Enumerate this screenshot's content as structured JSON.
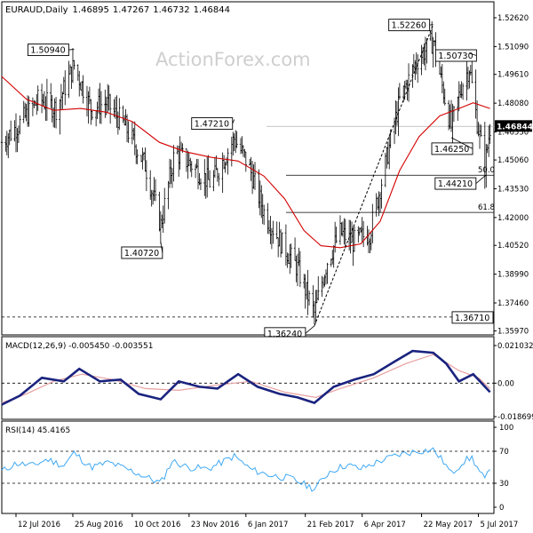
{
  "header": {
    "symbol": "EURAUD",
    "timeframe": "Daily",
    "open": "1.46895",
    "high": "1.47267",
    "low": "1.46732",
    "close": "1.46844"
  },
  "watermark": "ActionForex.com",
  "colors": {
    "bar": "#000000",
    "ma": "#d40000",
    "macd": "#1a237e",
    "signal": "#e8a0a0",
    "rsi": "#3fa9f5",
    "grid": "#bdbdbd"
  },
  "chart_data": [
    {
      "type": "ohlc",
      "id": "price",
      "ylim": [
        1.3576,
        1.5262
      ],
      "ytick_labels": [
        "1.52620",
        "1.51090",
        "1.49610",
        "1.48080",
        "1.46550",
        "1.45060",
        "1.43530",
        "1.42000",
        "1.40520",
        "1.38990",
        "1.37460",
        "1.35970"
      ],
      "ytick_values": [
        1.5262,
        1.5109,
        1.4961,
        1.4808,
        1.4655,
        1.4506,
        1.4353,
        1.42,
        1.4052,
        1.3899,
        1.3746,
        1.3597
      ],
      "current_price_label": "1.46844",
      "current_price": 1.46844,
      "key_points": [
        {
          "label": "1.50940",
          "value": 1.5094,
          "date": "2016-08-26"
        },
        {
          "label": "1.40720",
          "value": 1.4072,
          "date": "2016-11-01"
        },
        {
          "label": "1.47210",
          "value": 1.4721,
          "date": "2016-12-28"
        },
        {
          "label": "1.36240",
          "value": 1.3624,
          "date": "2017-02-28"
        },
        {
          "label": "1.52260",
          "value": 1.5226,
          "date": "2017-05-31"
        },
        {
          "label": "1.50730",
          "value": 1.5073,
          "date": "2017-06-28"
        },
        {
          "label": "1.46250",
          "value": 1.4625,
          "date": "2017-06-14"
        },
        {
          "label": "1.44210",
          "value": 1.4421,
          "date": "2017-07-10"
        },
        {
          "label": "1.36710",
          "value": 1.3671,
          "date": "2016-07-12"
        }
      ],
      "fib_levels": [
        {
          "label": "50.0",
          "value": 1.4425
        },
        {
          "label": "61.8",
          "value": 1.4227
        }
      ],
      "dashed_level": 1.3671,
      "trendline": {
        "from": {
          "date": "2017-02-28",
          "value": 1.3624
        },
        "to": {
          "date": "2017-05-31",
          "value": 1.5226
        }
      },
      "ma_name": "",
      "ma_points": [
        [
          "2016-07-01",
          1.495
        ],
        [
          "2016-07-20",
          1.483
        ],
        [
          "2016-08-10",
          1.477
        ],
        [
          "2016-08-31",
          1.478
        ],
        [
          "2016-09-20",
          1.476
        ],
        [
          "2016-10-10",
          1.471
        ],
        [
          "2016-10-31",
          1.46
        ],
        [
          "2016-11-20",
          1.455
        ],
        [
          "2016-12-10",
          1.452
        ],
        [
          "2016-12-31",
          1.45
        ],
        [
          "2017-01-20",
          1.442
        ],
        [
          "2017-02-05",
          1.43
        ],
        [
          "2017-02-20",
          1.413
        ],
        [
          "2017-03-05",
          1.405
        ],
        [
          "2017-03-20",
          1.404
        ],
        [
          "2017-04-05",
          1.406
        ],
        [
          "2017-04-20",
          1.418
        ],
        [
          "2017-05-05",
          1.445
        ],
        [
          "2017-05-20",
          1.463
        ],
        [
          "2017-06-05",
          1.474
        ],
        [
          "2017-06-20",
          1.478
        ],
        [
          "2017-07-01",
          1.481
        ],
        [
          "2017-07-14",
          1.478
        ]
      ],
      "price_path": [
        [
          "2016-07-01",
          1.46
        ],
        [
          "2016-07-15",
          1.47
        ],
        [
          "2016-07-30",
          1.483
        ],
        [
          "2016-08-12",
          1.478
        ],
        [
          "2016-08-26",
          1.501
        ],
        [
          "2016-09-08",
          1.478
        ],
        [
          "2016-09-20",
          1.481
        ],
        [
          "2016-10-05",
          1.468
        ],
        [
          "2016-10-20",
          1.448
        ],
        [
          "2016-11-01",
          1.416
        ],
        [
          "2016-11-12",
          1.455
        ],
        [
          "2016-11-25",
          1.448
        ],
        [
          "2016-12-10",
          1.438
        ],
        [
          "2016-12-28",
          1.462
        ],
        [
          "2017-01-08",
          1.448
        ],
        [
          "2017-01-20",
          1.423
        ],
        [
          "2017-02-01",
          1.408
        ],
        [
          "2017-02-15",
          1.393
        ],
        [
          "2017-02-28",
          1.369
        ],
        [
          "2017-03-10",
          1.397
        ],
        [
          "2017-03-20",
          1.412
        ],
        [
          "2017-03-30",
          1.407
        ],
        [
          "2017-04-12",
          1.412
        ],
        [
          "2017-04-22",
          1.442
        ],
        [
          "2017-05-05",
          1.482
        ],
        [
          "2017-05-18",
          1.503
        ],
        [
          "2017-05-31",
          1.514
        ],
        [
          "2017-06-06",
          1.493
        ],
        [
          "2017-06-14",
          1.468
        ],
        [
          "2017-06-22",
          1.49
        ],
        [
          "2017-06-28",
          1.5
        ],
        [
          "2017-07-04",
          1.471
        ],
        [
          "2017-07-10",
          1.447
        ],
        [
          "2017-07-14",
          1.468
        ]
      ]
    },
    {
      "type": "line",
      "id": "macd",
      "title": "MACD(12,26,9) -0.005450 -0.003551",
      "ylim": [
        -0.0187,
        0.0215
      ],
      "ytick_labels": [
        "0.021032",
        "0.00",
        "-0.018699"
      ],
      "ytick_values": [
        0.021032,
        0.0,
        -0.018699
      ],
      "macd_points": [
        [
          "2016-07-01",
          -0.012
        ],
        [
          "2016-07-15",
          -0.007
        ],
        [
          "2016-08-01",
          0.003
        ],
        [
          "2016-08-18",
          0.001
        ],
        [
          "2016-08-30",
          0.008
        ],
        [
          "2016-09-15",
          0.001
        ],
        [
          "2016-10-01",
          0.002
        ],
        [
          "2016-10-15",
          -0.006
        ],
        [
          "2016-11-01",
          -0.009
        ],
        [
          "2016-11-15",
          0.001
        ],
        [
          "2016-12-01",
          -0.002
        ],
        [
          "2016-12-15",
          -0.003
        ],
        [
          "2016-12-31",
          0.005
        ],
        [
          "2017-01-15",
          -0.002
        ],
        [
          "2017-02-01",
          -0.006
        ],
        [
          "2017-02-15",
          -0.008
        ],
        [
          "2017-02-28",
          -0.011
        ],
        [
          "2017-03-15",
          -0.002
        ],
        [
          "2017-03-31",
          0.002
        ],
        [
          "2017-04-15",
          0.005
        ],
        [
          "2017-05-01",
          0.012
        ],
        [
          "2017-05-15",
          0.018
        ],
        [
          "2017-05-31",
          0.017
        ],
        [
          "2017-06-10",
          0.011
        ],
        [
          "2017-06-20",
          0.001
        ],
        [
          "2017-07-01",
          0.005
        ],
        [
          "2017-07-14",
          -0.005
        ]
      ],
      "signal_points": [
        [
          "2016-07-01",
          -0.011
        ],
        [
          "2016-07-20",
          -0.006
        ],
        [
          "2016-08-10",
          0.001
        ],
        [
          "2016-09-01",
          0.005
        ],
        [
          "2016-09-25",
          0.002
        ],
        [
          "2016-10-20",
          -0.003
        ],
        [
          "2016-11-15",
          -0.004
        ],
        [
          "2016-12-15",
          -0.001
        ],
        [
          "2017-01-10",
          0.001
        ],
        [
          "2017-02-05",
          -0.005
        ],
        [
          "2017-03-01",
          -0.008
        ],
        [
          "2017-03-20",
          -0.003
        ],
        [
          "2017-04-15",
          0.003
        ],
        [
          "2017-05-10",
          0.011
        ],
        [
          "2017-05-31",
          0.016
        ],
        [
          "2017-06-20",
          0.007
        ],
        [
          "2017-07-05",
          0.003
        ],
        [
          "2017-07-14",
          -0.003
        ]
      ]
    },
    {
      "type": "line",
      "id": "rsi",
      "title": "RSI(14) 45.4165",
      "ylim": [
        0,
        100
      ],
      "ytick_labels": [
        "100",
        "70",
        "30",
        "0"
      ],
      "ytick_values": [
        100,
        70,
        30,
        0
      ],
      "rsi_points": [
        [
          "2016-07-01",
          45
        ],
        [
          "2016-07-12",
          55
        ],
        [
          "2016-07-25",
          52
        ],
        [
          "2016-08-05",
          60
        ],
        [
          "2016-08-18",
          52
        ],
        [
          "2016-08-26",
          68
        ],
        [
          "2016-09-08",
          50
        ],
        [
          "2016-09-22",
          56
        ],
        [
          "2016-10-10",
          45
        ],
        [
          "2016-10-25",
          35
        ],
        [
          "2016-11-01",
          30
        ],
        [
          "2016-11-10",
          58
        ],
        [
          "2016-11-22",
          50
        ],
        [
          "2016-12-08",
          48
        ],
        [
          "2016-12-28",
          64
        ],
        [
          "2017-01-10",
          47
        ],
        [
          "2017-01-25",
          40
        ],
        [
          "2017-02-10",
          36
        ],
        [
          "2017-02-28",
          23
        ],
        [
          "2017-03-12",
          45
        ],
        [
          "2017-03-25",
          53
        ],
        [
          "2017-04-05",
          48
        ],
        [
          "2017-04-20",
          58
        ],
        [
          "2017-05-05",
          66
        ],
        [
          "2017-05-18",
          70
        ],
        [
          "2017-05-31",
          72
        ],
        [
          "2017-06-08",
          57
        ],
        [
          "2017-06-14",
          42
        ],
        [
          "2017-06-24",
          58
        ],
        [
          "2017-06-30",
          62
        ],
        [
          "2017-07-06",
          44
        ],
        [
          "2017-07-10",
          35
        ],
        [
          "2017-07-14",
          45
        ]
      ]
    }
  ],
  "x_axis": {
    "tick_labels": [
      "12 Jul 2016",
      "25 Aug 2016",
      "10 Oct 2016",
      "23 Nov 2016",
      "6 Jan 2017",
      "21 Feb 2017",
      "6 Apr 2017",
      "22 May 2017",
      "5 Jul 2017"
    ],
    "tick_dates": [
      "2016-07-12",
      "2016-08-25",
      "2016-10-10",
      "2016-11-23",
      "2017-01-06",
      "2017-02-21",
      "2017-04-06",
      "2017-05-22",
      "2017-07-05"
    ],
    "range": [
      "2016-07-01",
      "2017-07-17"
    ]
  }
}
